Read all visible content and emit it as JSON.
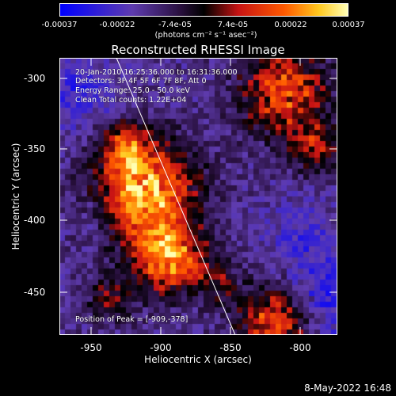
{
  "colorbar": {
    "tick_labels": [
      "-0.00037",
      "-0.00022",
      "-7.4e-05",
      "7.4e-05",
      "0.00022",
      "0.00037"
    ],
    "units": "(photons cm⁻² s⁻¹ asec⁻²)",
    "colors": {
      "low": "#0000ff",
      "mid_low": "#6a3aa0",
      "mid": "#000000",
      "mid_high": "#ff3000",
      "high": "#ffff80"
    }
  },
  "title": "Reconstructed RHESSI Image",
  "info": {
    "time_range": "20-Jan-2010 16:25:36.000 to 16:31:36.000",
    "detectors": "Detectors: 3F 4F 5F 6F 7F 8F, Att 0",
    "energy_range": "Energy Range: 25.0 - 50.0 keV",
    "method": "Clean     Total counts: 1.22E+04",
    "peak": "Position of Peak = [-909,-378]"
  },
  "axes": {
    "xlabel": "Heliocentric X (arcsec)",
    "ylabel": "Heliocentric Y (arcsec)",
    "xtick_labels": [
      "-950",
      "-900",
      "-850",
      "-800"
    ],
    "ytick_labels": [
      "-300",
      "-350",
      "-400",
      "-450"
    ]
  },
  "timestamp": "8-May-2022 16:48"
}
